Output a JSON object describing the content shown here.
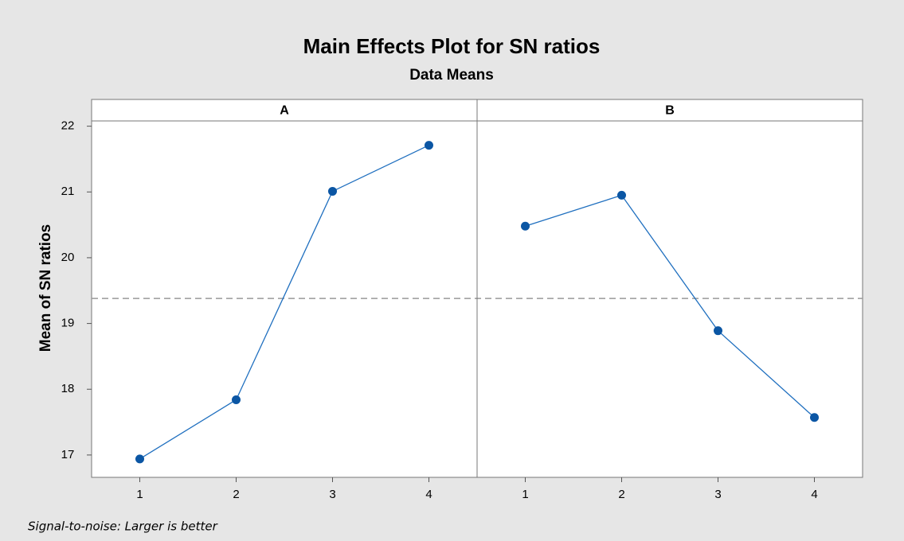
{
  "chart_data": {
    "type": "line",
    "title": "Main Effects Plot for SN ratios",
    "subtitle": "Data Means",
    "ylabel": "Mean of SN ratios",
    "footnote": "Signal-to-noise: Larger is better",
    "ylim": [
      16.66,
      22.08
    ],
    "yticks": [
      17,
      18,
      19,
      20,
      21,
      22
    ],
    "reference_line": 19.38,
    "color": "#1f6fbf",
    "marker_color": "#0b56a4",
    "panels": [
      {
        "name": "A",
        "categories": [
          "1",
          "2",
          "3",
          "4"
        ],
        "values": [
          16.94,
          17.84,
          21.01,
          21.71
        ]
      },
      {
        "name": "B",
        "categories": [
          "1",
          "2",
          "3",
          "4"
        ],
        "values": [
          20.48,
          20.95,
          18.89,
          17.57
        ]
      }
    ]
  }
}
